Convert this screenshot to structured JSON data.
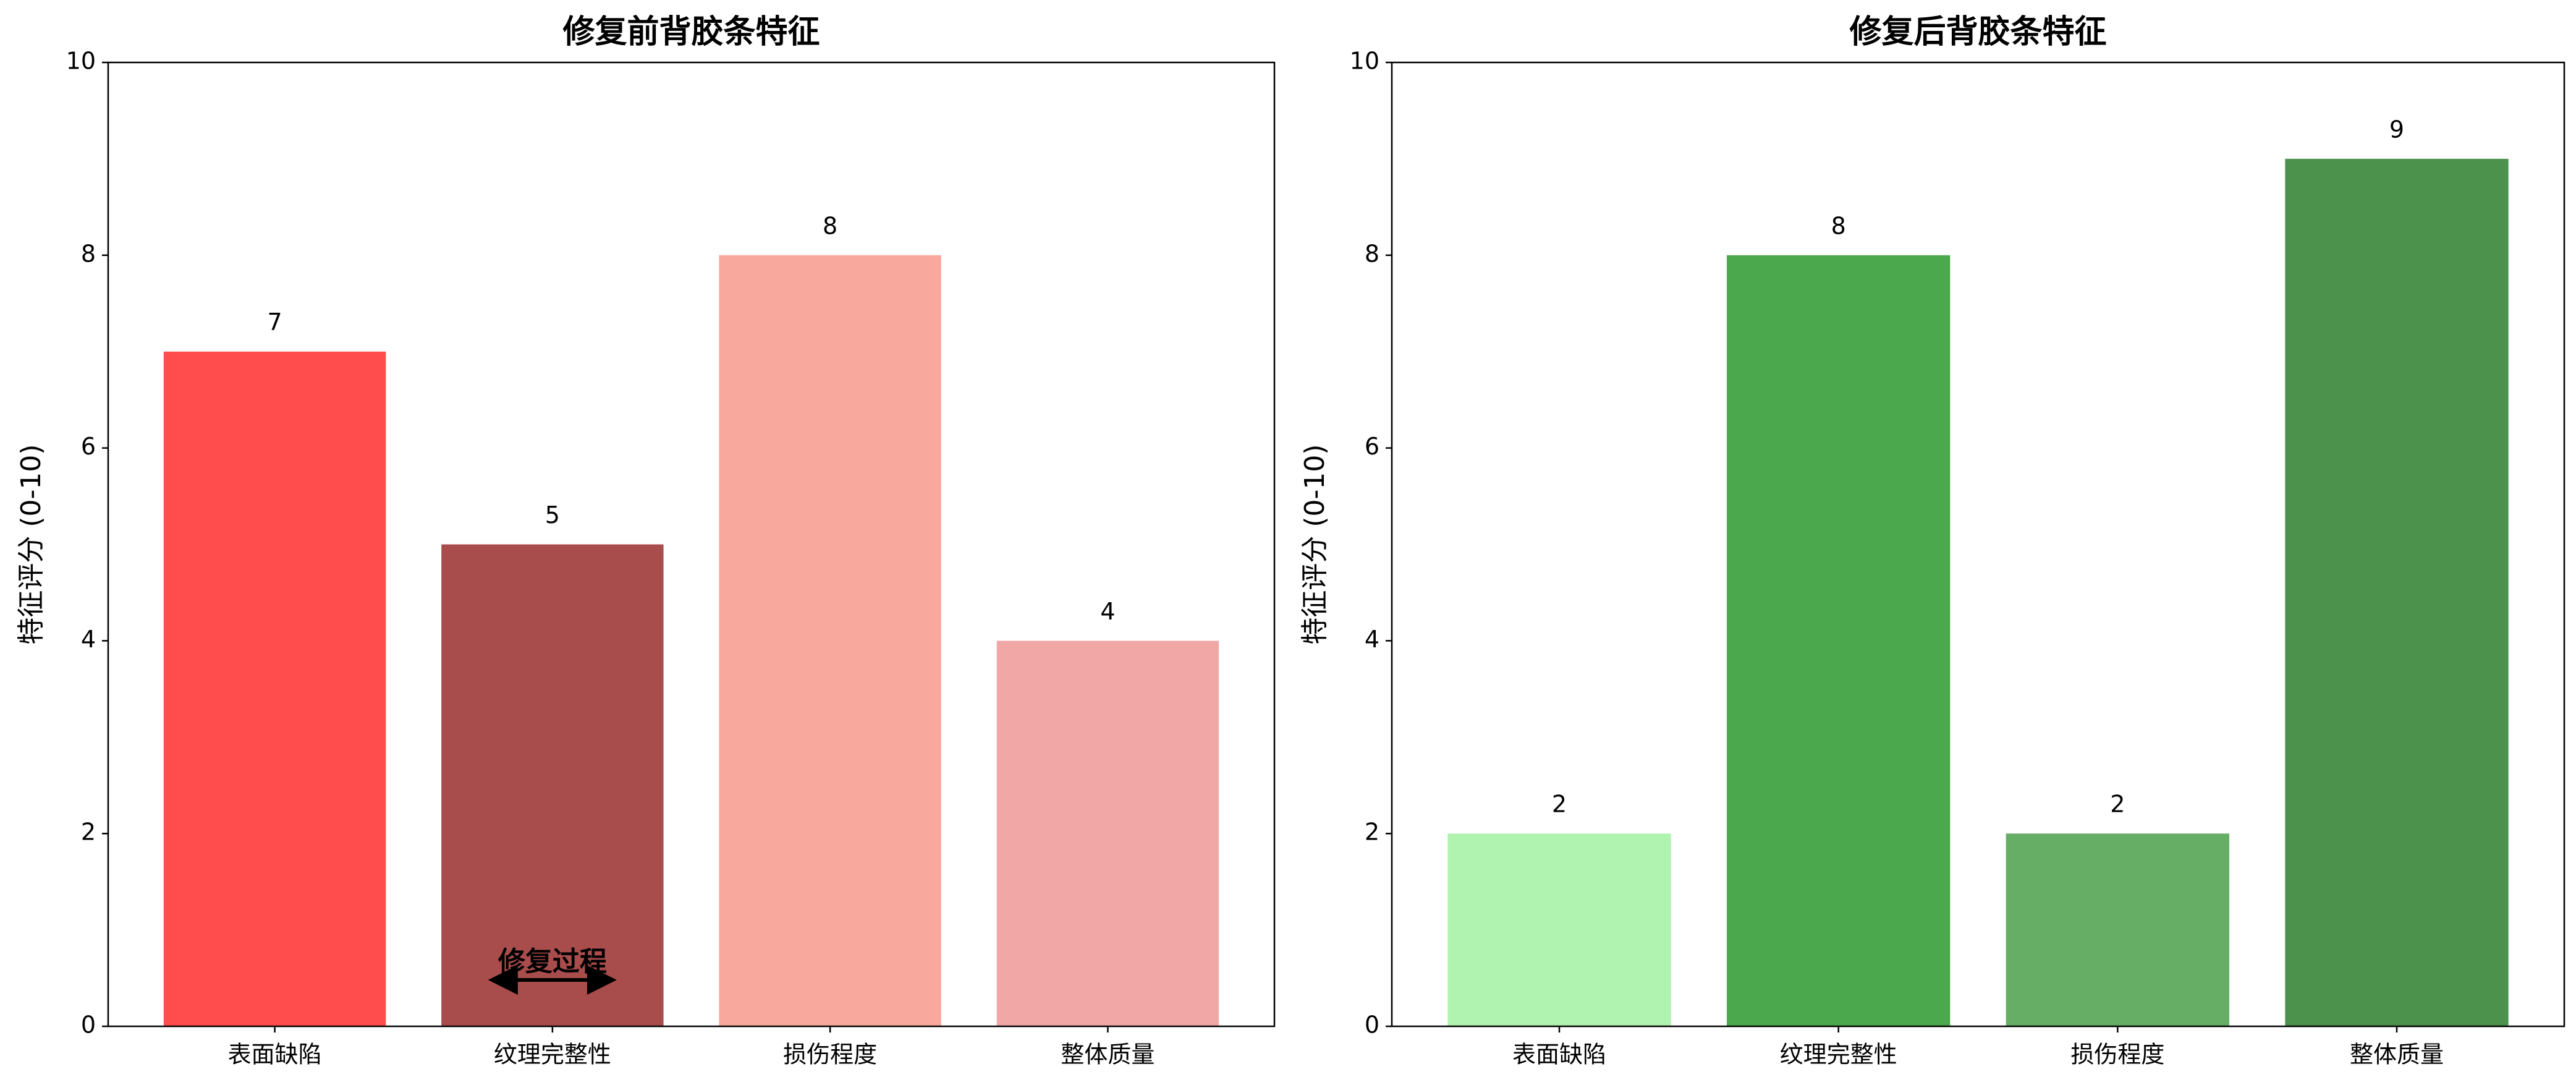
{
  "chart_data": [
    {
      "type": "bar",
      "title": "修复前背胶条特征",
      "ylabel": "特征评分 (0-10)",
      "categories": [
        "表面缺陷",
        "纹理完整性",
        "损伤程度",
        "整体质量"
      ],
      "values": [
        7,
        5,
        8,
        4
      ],
      "colors": [
        "#ff4c4c",
        "#a84c4c",
        "#f9a89e",
        "#f2a7a7"
      ],
      "ylim": [
        0,
        10
      ],
      "yticks": [
        0,
        2,
        4,
        6,
        8,
        10
      ],
      "annotation": "修复过程"
    },
    {
      "type": "bar",
      "title": "修复后背胶条特征",
      "ylabel": "特征评分 (0-10)",
      "categories": [
        "表面缺陷",
        "纹理完整性",
        "损伤程度",
        "整体质量"
      ],
      "values": [
        2,
        8,
        2,
        9
      ],
      "colors": [
        "#b0f2b0",
        "#4ca84c",
        "#66ad66",
        "#4c914c"
      ],
      "ylim": [
        0,
        10
      ],
      "yticks": [
        0,
        2,
        4,
        6,
        8,
        10
      ]
    }
  ]
}
